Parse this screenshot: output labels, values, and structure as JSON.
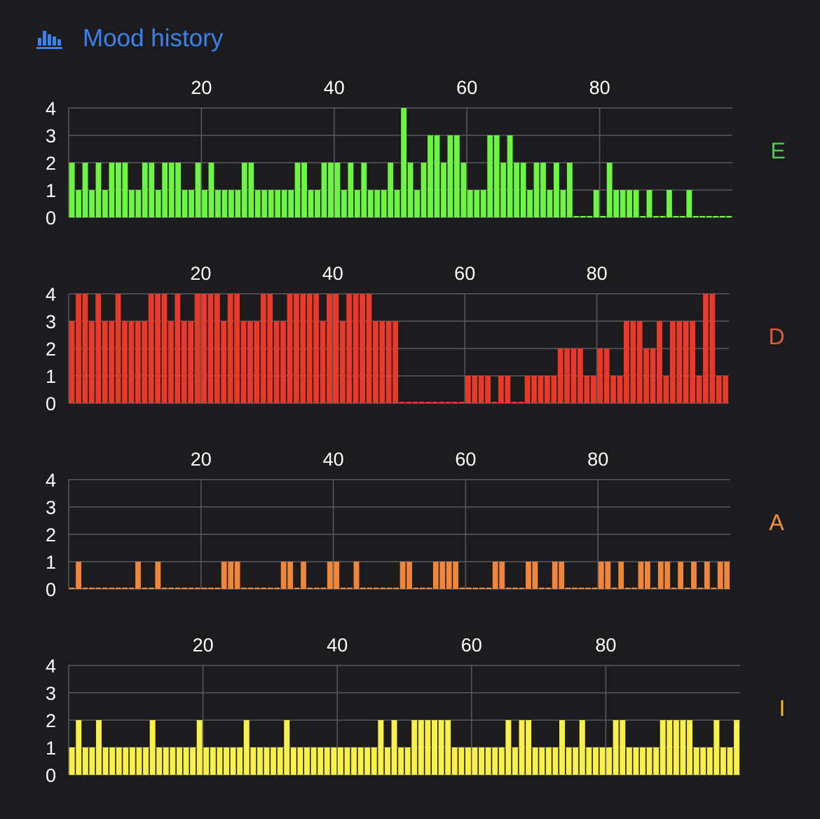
{
  "header": {
    "title": "Mood history",
    "icon": "bar-chart-icon",
    "accent": "#3b82f0"
  },
  "chart_data": [
    {
      "type": "bar",
      "name": "E",
      "color": "#6cf542",
      "label_color": "#4fc44f",
      "xticks": [
        20,
        40,
        60,
        80
      ],
      "yticks": [
        0,
        1,
        2,
        3,
        4
      ],
      "ylim": [
        0,
        4
      ],
      "xlim": [
        0,
        100
      ],
      "grid": true,
      "values": [
        2,
        1,
        2,
        1,
        2,
        1,
        2,
        2,
        2,
        1,
        1,
        2,
        2,
        1,
        2,
        2,
        2,
        1,
        1,
        2,
        1,
        2,
        1,
        1,
        1,
        1,
        2,
        2,
        1,
        1,
        1,
        1,
        1,
        1,
        2,
        2,
        1,
        1,
        2,
        2,
        2,
        1,
        2,
        1,
        2,
        1,
        1,
        1,
        2,
        1,
        4,
        2,
        1,
        2,
        3,
        3,
        2,
        3,
        3,
        2,
        1,
        1,
        1,
        3,
        3,
        2,
        3,
        2,
        2,
        1,
        2,
        2,
        1,
        2,
        1,
        2,
        0,
        0,
        0,
        1,
        0,
        2,
        1,
        1,
        1,
        1,
        0,
        1,
        0,
        0,
        1,
        0,
        0,
        1,
        0,
        0,
        0,
        0,
        0,
        0
      ]
    },
    {
      "type": "bar",
      "name": "D",
      "color": "#e8392a",
      "label_color": "#e05a3a",
      "xticks": [
        20,
        40,
        60,
        80
      ],
      "yticks": [
        0,
        1,
        2,
        3,
        4
      ],
      "ylim": [
        0,
        4
      ],
      "xlim": [
        0,
        100
      ],
      "grid": true,
      "values": [
        3,
        4,
        4,
        3,
        4,
        3,
        3,
        4,
        3,
        3,
        3,
        3,
        4,
        4,
        4,
        3,
        4,
        3,
        3,
        4,
        4,
        4,
        4,
        3,
        4,
        4,
        3,
        3,
        3,
        4,
        4,
        3,
        3,
        4,
        4,
        4,
        4,
        4,
        3,
        4,
        4,
        3,
        4,
        4,
        4,
        4,
        3,
        3,
        3,
        3,
        0,
        0,
        0,
        0,
        0,
        0,
        0,
        0,
        0,
        0,
        1,
        1,
        1,
        1,
        0,
        1,
        1,
        0,
        0,
        1,
        1,
        1,
        1,
        1,
        2,
        2,
        2,
        2,
        1,
        1,
        2,
        2,
        1,
        1,
        3,
        3,
        3,
        2,
        2,
        3,
        1,
        3,
        3,
        3,
        3,
        1,
        4,
        4,
        1,
        1
      ]
    },
    {
      "type": "bar",
      "name": "A",
      "color": "#f0863a",
      "label_color": "#f0963a",
      "xticks": [
        20,
        40,
        60,
        80
      ],
      "yticks": [
        0,
        1,
        2,
        3,
        4
      ],
      "ylim": [
        0,
        4
      ],
      "xlim": [
        0,
        100
      ],
      "grid": true,
      "values": [
        0,
        1,
        0,
        0,
        0,
        0,
        0,
        0,
        0,
        0,
        1,
        0,
        0,
        1,
        0,
        0,
        0,
        0,
        0,
        0,
        0,
        0,
        0,
        1,
        1,
        1,
        0,
        0,
        0,
        0,
        0,
        0,
        1,
        1,
        0,
        1,
        0,
        0,
        0,
        1,
        1,
        0,
        0,
        1,
        0,
        0,
        0,
        0,
        0,
        0,
        1,
        1,
        0,
        0,
        0,
        1,
        1,
        1,
        1,
        0,
        0,
        0,
        0,
        0,
        1,
        1,
        0,
        0,
        0,
        1,
        1,
        0,
        0,
        1,
        1,
        0,
        0,
        0,
        0,
        0,
        1,
        1,
        0,
        1,
        0,
        0,
        1,
        1,
        0,
        1,
        1,
        0,
        1,
        0,
        1,
        0,
        1,
        0,
        1,
        1
      ]
    },
    {
      "type": "bar",
      "name": "I",
      "color": "#faf04a",
      "label_color": "#f0b93a",
      "xticks": [
        20,
        40,
        60,
        80
      ],
      "yticks": [
        0,
        1,
        2,
        3,
        4
      ],
      "ylim": [
        0,
        4
      ],
      "xlim": [
        0,
        100
      ],
      "grid": true,
      "values": [
        1,
        2,
        1,
        1,
        2,
        1,
        1,
        1,
        1,
        1,
        1,
        1,
        2,
        1,
        1,
        1,
        1,
        1,
        1,
        2,
        1,
        1,
        1,
        1,
        1,
        1,
        2,
        1,
        1,
        1,
        1,
        1,
        2,
        1,
        1,
        1,
        1,
        1,
        1,
        1,
        1,
        1,
        1,
        1,
        1,
        1,
        2,
        1,
        2,
        1,
        1,
        2,
        2,
        2,
        2,
        2,
        2,
        1,
        1,
        1,
        1,
        1,
        1,
        1,
        1,
        2,
        1,
        2,
        2,
        1,
        1,
        1,
        1,
        2,
        1,
        1,
        2,
        1,
        1,
        1,
        1,
        2,
        2,
        1,
        1,
        1,
        1,
        1,
        2,
        2,
        2,
        2,
        2,
        1,
        1,
        1,
        2,
        1,
        1,
        2
      ]
    }
  ]
}
